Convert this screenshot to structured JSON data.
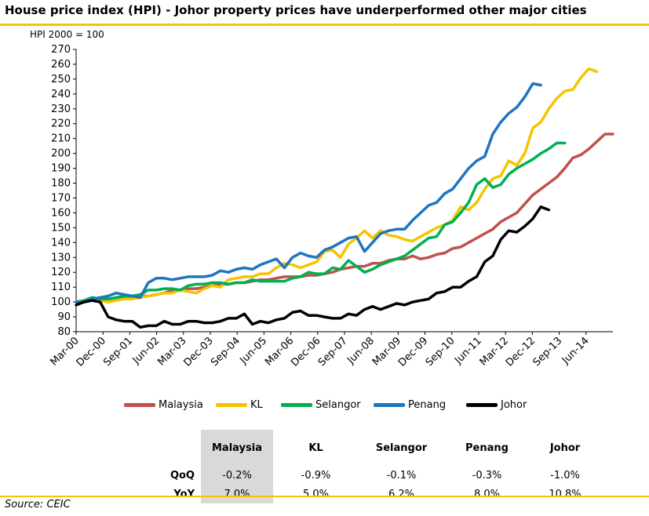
{
  "title": "House price index (HPI) - Johor property prices have underperformed other major cities",
  "subtitle": "HPI 2000 = 100",
  "source": "Source: CEIC",
  "colors": {
    "accent": "#f5c400"
  },
  "chart_data": {
    "type": "line",
    "title": "House price index (HPI) - Johor property prices have underperformed other major cities",
    "ylabel": "HPI 2000 = 100",
    "xlabel": "",
    "ylim": [
      80,
      270
    ],
    "yticks": [
      80,
      90,
      100,
      110,
      120,
      130,
      140,
      150,
      160,
      170,
      180,
      190,
      200,
      210,
      220,
      230,
      240,
      250,
      260,
      270
    ],
    "grid": false,
    "legend": "bottom",
    "period": "quarterly",
    "xticks": [
      "Mar-00",
      "Dec-00",
      "Sep-01",
      "Jun-02",
      "Mar-03",
      "Dec-03",
      "Sep-04",
      "Jun-05",
      "Mar-06",
      "Dec-06",
      "Sep-07",
      "Jun-08",
      "Mar-09",
      "Dec-09",
      "Sep-10",
      "Jun-11",
      "Mar-12",
      "Dec-12",
      "Sep-13",
      "Jun-14"
    ],
    "series": [
      {
        "name": "Malaysia",
        "color": "#c0504d",
        "values": [
          100,
          101,
          101,
          102,
          102,
          102,
          103,
          103,
          104,
          104,
          105,
          106,
          108,
          108,
          109,
          109,
          110,
          111,
          112,
          112,
          113,
          113,
          114,
          115,
          115,
          116,
          117,
          117,
          117,
          118,
          118,
          119,
          120,
          122,
          123,
          124,
          124,
          126,
          126,
          128,
          129,
          129,
          131,
          129,
          130,
          132,
          133,
          136,
          137,
          140,
          143,
          146,
          149,
          154,
          157,
          160,
          166,
          172,
          176,
          180,
          184,
          190,
          197,
          199,
          203,
          208,
          213,
          213
        ]
      },
      {
        "name": "KL",
        "color": "#f5c400",
        "values": [
          100,
          101,
          103,
          101,
          100,
          101,
          102,
          102,
          103,
          104,
          105,
          106,
          106,
          108,
          107,
          106,
          109,
          111,
          110,
          115,
          116,
          117,
          117,
          119,
          119,
          123,
          126,
          125,
          123,
          125,
          127,
          134,
          135,
          130,
          139,
          143,
          148,
          143,
          148,
          145,
          144,
          142,
          141,
          144,
          147,
          150,
          152,
          155,
          164,
          162,
          167,
          176,
          183,
          185,
          195,
          192,
          200,
          217,
          221,
          230,
          237,
          242,
          243,
          251,
          257,
          255
        ]
      },
      {
        "name": "Selangor",
        "color": "#00b050",
        "values": [
          100,
          101,
          103,
          102,
          102,
          103,
          104,
          104,
          105,
          108,
          108,
          109,
          109,
          108,
          111,
          112,
          112,
          113,
          113,
          112,
          113,
          113,
          115,
          114,
          114,
          114,
          114,
          116,
          117,
          120,
          119,
          119,
          123,
          122,
          128,
          124,
          120,
          122,
          125,
          127,
          129,
          131,
          135,
          139,
          143,
          144,
          152,
          154,
          160,
          167,
          179,
          183,
          177,
          179,
          186,
          190,
          193,
          196,
          200,
          203,
          207,
          207
        ]
      },
      {
        "name": "Penang",
        "color": "#1f75c0",
        "values": [
          100,
          100,
          102,
          103,
          104,
          106,
          105,
          104,
          103,
          113,
          116,
          116,
          115,
          116,
          117,
          117,
          117,
          118,
          121,
          120,
          122,
          123,
          122,
          125,
          127,
          129,
          123,
          130,
          133,
          131,
          130,
          135,
          137,
          140,
          143,
          144,
          134,
          140,
          146,
          148,
          149,
          149,
          155,
          160,
          165,
          167,
          173,
          176,
          183,
          190,
          195,
          198,
          213,
          221,
          227,
          231,
          238,
          247,
          246
        ]
      },
      {
        "name": "Johor",
        "color": "#000000",
        "values": [
          98,
          100,
          101,
          100,
          90,
          88,
          87,
          87,
          83,
          84,
          84,
          87,
          85,
          85,
          87,
          87,
          86,
          86,
          87,
          89,
          89,
          92,
          85,
          87,
          86,
          88,
          89,
          93,
          94,
          91,
          91,
          90,
          89,
          89,
          92,
          91,
          95,
          97,
          95,
          97,
          99,
          98,
          100,
          101,
          102,
          106,
          107,
          110,
          110,
          114,
          117,
          127,
          131,
          142,
          148,
          147,
          151,
          156,
          164,
          162
        ]
      }
    ]
  },
  "table": {
    "headers": [
      "Malaysia",
      "KL",
      "Selangor",
      "Penang",
      "Johor"
    ],
    "rows": [
      {
        "label": "QoQ",
        "values": [
          "-0.2%",
          "-0.9%",
          "-0.1%",
          "-0.3%",
          "-1.0%"
        ]
      },
      {
        "label": "YoY",
        "values": [
          "7.0%",
          "5.0%",
          "6.2%",
          "8.0%",
          "10.8%"
        ]
      }
    ]
  }
}
